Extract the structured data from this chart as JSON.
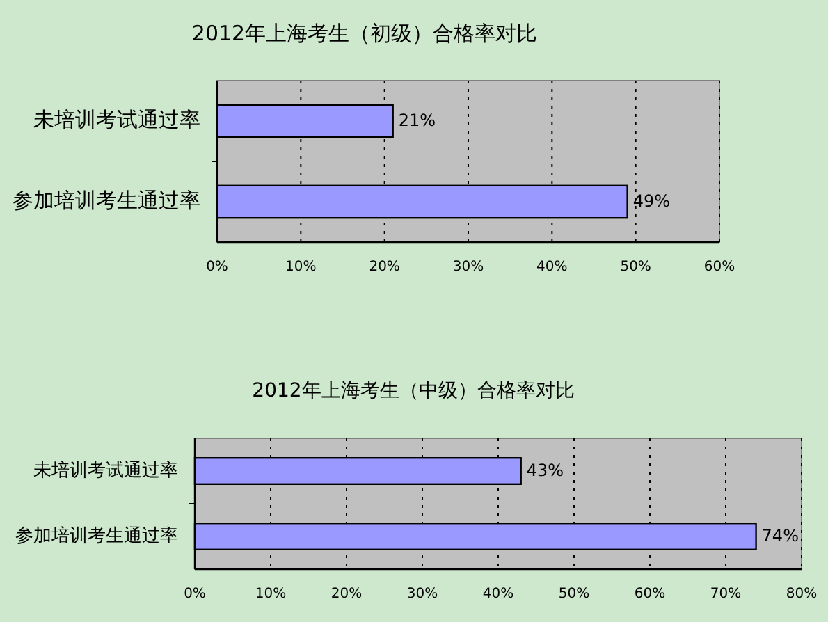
{
  "chart_data": [
    {
      "type": "bar",
      "orientation": "horizontal",
      "title": "2012年上海考生（初级）合格率对比",
      "categories": [
        "未培训考试通过率",
        "参加培训考生通过率"
      ],
      "values": [
        21,
        49
      ],
      "value_labels": [
        "21%",
        "49%"
      ],
      "color": "#9999ff",
      "xlim": [
        0,
        60
      ],
      "xticks": [
        {
          "value": 0,
          "label": "0%"
        },
        {
          "value": 10,
          "label": "10%"
        },
        {
          "value": 20,
          "label": "20%"
        },
        {
          "value": 30,
          "label": "30%"
        },
        {
          "value": 40,
          "label": "40%"
        },
        {
          "value": 50,
          "label": "50%"
        },
        {
          "value": 60,
          "label": "60%"
        }
      ],
      "grid": "x"
    },
    {
      "type": "bar",
      "orientation": "horizontal",
      "title": "2012年上海考生（中级）合格率对比",
      "categories": [
        "未培训考试通过率",
        "参加培训考生通过率"
      ],
      "values": [
        43,
        74
      ],
      "value_labels": [
        "43%",
        "74%"
      ],
      "color": "#9999ff",
      "xlim": [
        0,
        80
      ],
      "xticks": [
        {
          "value": 0,
          "label": "0%"
        },
        {
          "value": 10,
          "label": "10%"
        },
        {
          "value": 20,
          "label": "20%"
        },
        {
          "value": 30,
          "label": "30%"
        },
        {
          "value": 40,
          "label": "40%"
        },
        {
          "value": 50,
          "label": "50%"
        },
        {
          "value": 60,
          "label": "60%"
        },
        {
          "value": 70,
          "label": "70%"
        },
        {
          "value": 80,
          "label": "80%"
        }
      ],
      "grid": "x"
    }
  ]
}
